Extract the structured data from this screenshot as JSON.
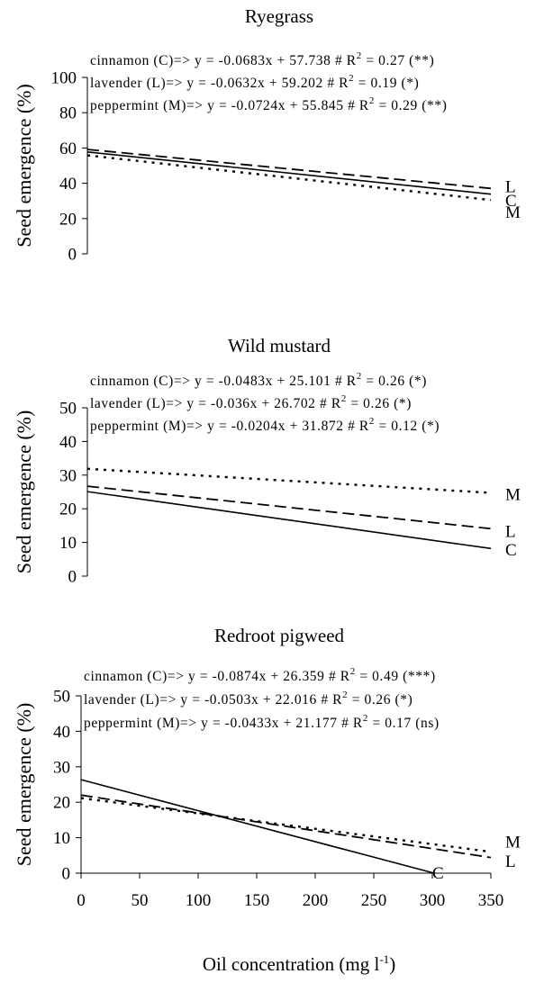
{
  "figure": {
    "xlabel": "Oil concentration (mg l",
    "xlabel_sup": "-1",
    "xlabel_close": ")"
  },
  "chart_data": [
    {
      "type": "line",
      "title": "Ryegrass",
      "xlabel": "",
      "ylabel": "Seed emergence (%)",
      "xlim": [
        0,
        350
      ],
      "ylim": [
        0,
        100
      ],
      "yticks": [
        0,
        20,
        40,
        60,
        80,
        100
      ],
      "show_xticks": false,
      "series": [
        {
          "name": "C",
          "prefix": "cinnamon (C)=> y = ",
          "equation": "-0.0683x + 57.738",
          "r2": "0.27",
          "sig": "(**)",
          "slope": -0.0683,
          "intercept": 57.738,
          "x": [
            0,
            350
          ],
          "y": [
            57.738,
            33.833
          ],
          "style": "solid",
          "label_y": 30.5
        },
        {
          "name": "L",
          "prefix": "lavender (L)=> y = ",
          "equation": "-0.0632x + 59.202",
          "r2": "0.19",
          "sig": "(*)",
          "slope": -0.0632,
          "intercept": 59.202,
          "x": [
            0,
            350
          ],
          "y": [
            59.202,
            37.082
          ],
          "style": "dashed",
          "label_y": 38.5
        },
        {
          "name": "M",
          "prefix": "peppermint (M)=> y = ",
          "equation": "-0.0724x + 55.845",
          "r2": "0.29",
          "sig": "(**)",
          "slope": -0.0724,
          "intercept": 55.845,
          "x": [
            0,
            350
          ],
          "y": [
            55.845,
            30.505
          ],
          "style": "dotted",
          "label_y": 24
        }
      ]
    },
    {
      "type": "line",
      "title": "Wild mustard",
      "xlabel": "",
      "ylabel": "Seed emergence (%)",
      "xlim": [
        0,
        350
      ],
      "ylim": [
        0,
        50
      ],
      "yticks": [
        0,
        10,
        20,
        30,
        40,
        50
      ],
      "show_xticks": false,
      "series": [
        {
          "name": "C",
          "prefix": "cinnamon (C)=> y = ",
          "equation": "-0.0483x + 25.101",
          "r2": "0.26",
          "sig": "(*)",
          "slope": -0.0483,
          "intercept": 25.101,
          "x": [
            0,
            350
          ],
          "y": [
            25.101,
            8.196
          ],
          "style": "solid",
          "label_y": 8
        },
        {
          "name": "L",
          "prefix": "lavender (L)=> y = ",
          "equation": "-0.036x + 26.702",
          "r2": "0.26",
          "sig": "(*)",
          "slope": -0.036,
          "intercept": 26.702,
          "x": [
            0,
            350
          ],
          "y": [
            26.702,
            14.102
          ],
          "style": "dashed",
          "label_y": 13.5
        },
        {
          "name": "M",
          "prefix": "peppermint (M)=> y = ",
          "equation": "-0.0204x + 31.872",
          "r2": "0.12",
          "sig": "(*)",
          "slope": -0.0204,
          "intercept": 31.872,
          "x": [
            0,
            350
          ],
          "y": [
            31.872,
            24.732
          ],
          "style": "dotted",
          "label_y": 24.5
        }
      ]
    },
    {
      "type": "line",
      "title": "Redroot pigweed",
      "xlabel": "Oil concentration (mg l-1)",
      "ylabel": "Seed emergence (%)",
      "xlim": [
        0,
        350
      ],
      "ylim": [
        0,
        50
      ],
      "yticks": [
        0,
        10,
        20,
        30,
        40,
        50
      ],
      "xticks": [
        0,
        50,
        100,
        150,
        200,
        250,
        300,
        350
      ],
      "show_xticks": true,
      "series": [
        {
          "name": "C",
          "prefix": "cinnamon (C)=> y = ",
          "equation": "-0.0874x + 26.359",
          "r2": "0.49",
          "sig": "(***)",
          "slope": -0.0874,
          "intercept": 26.359,
          "x": [
            0,
            301.6
          ],
          "y": [
            26.359,
            0
          ],
          "style": "solid",
          "label_x": 300,
          "label_y": 0.3
        },
        {
          "name": "L",
          "prefix": "lavender (L)=> y = ",
          "equation": "-0.0503x + 22.016",
          "r2": "0.26",
          "sig": "(*)",
          "slope": -0.0503,
          "intercept": 22.016,
          "x": [
            0,
            350
          ],
          "y": [
            22.016,
            4.411
          ],
          "style": "dashed",
          "label_y": 3.5
        },
        {
          "name": "M",
          "prefix": "peppermint (M)=> y = ",
          "equation": "-0.0433x + 21.177",
          "r2": "0.17",
          "sig": "(ns)",
          "slope": -0.0433,
          "intercept": 21.177,
          "x": [
            0,
            350
          ],
          "y": [
            21.177,
            6.022
          ],
          "style": "dotted",
          "label_y": 9
        }
      ]
    }
  ]
}
